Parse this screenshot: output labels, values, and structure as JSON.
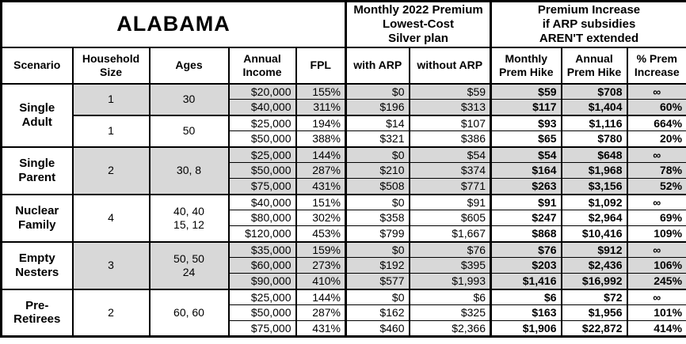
{
  "title": "ALABAMA",
  "header": {
    "premium_group": "Monthly 2022 Premium\nLowest-Cost\nSilver plan",
    "increase_group": "Premium Increase\nif ARP subsidies\nAREN'T extended",
    "columns": [
      "Scenario",
      "Household\nSize",
      "Ages",
      "Annual\nIncome",
      "FPL",
      "with ARP",
      "without ARP",
      "Monthly\nPrem Hike",
      "Annual\nPrem Hike",
      "% Prem\nIncrease"
    ]
  },
  "colors": {
    "shaded_row": "#d8d8d8",
    "border": "#000000",
    "background": "#ffffff"
  },
  "groups": [
    {
      "scenario": "Single\nAdult",
      "subgroups": [
        {
          "household_size": "1",
          "ages": "30",
          "shaded": true,
          "rows": [
            [
              "$20,000",
              "155%",
              "$0",
              "$59",
              "$59",
              "$708",
              "∞"
            ],
            [
              "$40,000",
              "311%",
              "$196",
              "$313",
              "$117",
              "$1,404",
              "60%"
            ]
          ]
        },
        {
          "household_size": "1",
          "ages": "50",
          "shaded": false,
          "rows": [
            [
              "$25,000",
              "194%",
              "$14",
              "$107",
              "$93",
              "$1,116",
              "664%"
            ],
            [
              "$50,000",
              "388%",
              "$321",
              "$386",
              "$65",
              "$780",
              "20%"
            ]
          ]
        }
      ]
    },
    {
      "scenario": "Single\nParent",
      "subgroups": [
        {
          "household_size": "2",
          "ages": "30, 8",
          "shaded": true,
          "rows": [
            [
              "$25,000",
              "144%",
              "$0",
              "$54",
              "$54",
              "$648",
              "∞"
            ],
            [
              "$50,000",
              "287%",
              "$210",
              "$374",
              "$164",
              "$1,968",
              "78%"
            ],
            [
              "$75,000",
              "431%",
              "$508",
              "$771",
              "$263",
              "$3,156",
              "52%"
            ]
          ]
        }
      ]
    },
    {
      "scenario": "Nuclear\nFamily",
      "subgroups": [
        {
          "household_size": "4",
          "ages": "40, 40\n15, 12",
          "shaded": false,
          "rows": [
            [
              "$40,000",
              "151%",
              "$0",
              "$91",
              "$91",
              "$1,092",
              "∞"
            ],
            [
              "$80,000",
              "302%",
              "$358",
              "$605",
              "$247",
              "$2,964",
              "69%"
            ],
            [
              "$120,000",
              "453%",
              "$799",
              "$1,667",
              "$868",
              "$10,416",
              "109%"
            ]
          ]
        }
      ]
    },
    {
      "scenario": "Empty\nNesters",
      "subgroups": [
        {
          "household_size": "3",
          "ages": "50, 50\n24",
          "shaded": true,
          "rows": [
            [
              "$35,000",
              "159%",
              "$0",
              "$76",
              "$76",
              "$912",
              "∞"
            ],
            [
              "$60,000",
              "273%",
              "$192",
              "$395",
              "$203",
              "$2,436",
              "106%"
            ],
            [
              "$90,000",
              "410%",
              "$577",
              "$1,993",
              "$1,416",
              "$16,992",
              "245%"
            ]
          ]
        }
      ]
    },
    {
      "scenario": "Pre-\nRetirees",
      "subgroups": [
        {
          "household_size": "2",
          "ages": "60, 60",
          "shaded": false,
          "rows": [
            [
              "$25,000",
              "144%",
              "$0",
              "$6",
              "$6",
              "$72",
              "∞"
            ],
            [
              "$50,000",
              "287%",
              "$162",
              "$325",
              "$163",
              "$1,956",
              "101%"
            ],
            [
              "$75,000",
              "431%",
              "$460",
              "$2,366",
              "$1,906",
              "$22,872",
              "414%"
            ]
          ]
        }
      ]
    }
  ],
  "chart_data": {
    "type": "table",
    "title": "ALABAMA",
    "column_groups": [
      "Monthly 2022 Premium Lowest-Cost Silver plan",
      "Premium Increase if ARP subsidies AREN'T extended"
    ],
    "columns": [
      "Scenario",
      "Household Size",
      "Ages",
      "Annual Income",
      "FPL",
      "with ARP",
      "without ARP",
      "Monthly Prem Hike",
      "Annual Prem Hike",
      "% Prem Increase"
    ],
    "rows": [
      [
        "Single Adult",
        "1",
        "30",
        "$20,000",
        "155%",
        "$0",
        "$59",
        "$59",
        "$708",
        "∞"
      ],
      [
        "Single Adult",
        "1",
        "30",
        "$40,000",
        "311%",
        "$196",
        "$313",
        "$117",
        "$1,404",
        "60%"
      ],
      [
        "Single Adult",
        "1",
        "50",
        "$25,000",
        "194%",
        "$14",
        "$107",
        "$93",
        "$1,116",
        "664%"
      ],
      [
        "Single Adult",
        "1",
        "50",
        "$50,000",
        "388%",
        "$321",
        "$386",
        "$65",
        "$780",
        "20%"
      ],
      [
        "Single Parent",
        "2",
        "30, 8",
        "$25,000",
        "144%",
        "$0",
        "$54",
        "$54",
        "$648",
        "∞"
      ],
      [
        "Single Parent",
        "2",
        "30, 8",
        "$50,000",
        "287%",
        "$210",
        "$374",
        "$164",
        "$1,968",
        "78%"
      ],
      [
        "Single Parent",
        "2",
        "30, 8",
        "$75,000",
        "431%",
        "$508",
        "$771",
        "$263",
        "$3,156",
        "52%"
      ],
      [
        "Nuclear Family",
        "4",
        "40, 40, 15, 12",
        "$40,000",
        "151%",
        "$0",
        "$91",
        "$91",
        "$1,092",
        "∞"
      ],
      [
        "Nuclear Family",
        "4",
        "40, 40, 15, 12",
        "$80,000",
        "302%",
        "$358",
        "$605",
        "$247",
        "$2,964",
        "69%"
      ],
      [
        "Nuclear Family",
        "4",
        "40, 40, 15, 12",
        "$120,000",
        "453%",
        "$799",
        "$1,667",
        "$868",
        "$10,416",
        "109%"
      ],
      [
        "Empty Nesters",
        "3",
        "50, 50, 24",
        "$35,000",
        "159%",
        "$0",
        "$76",
        "$76",
        "$912",
        "∞"
      ],
      [
        "Empty Nesters",
        "3",
        "50, 50, 24",
        "$60,000",
        "273%",
        "$192",
        "$395",
        "$203",
        "$2,436",
        "106%"
      ],
      [
        "Empty Nesters",
        "3",
        "50, 50, 24",
        "$90,000",
        "410%",
        "$577",
        "$1,993",
        "$1,416",
        "$16,992",
        "245%"
      ],
      [
        "Pre-Retirees",
        "2",
        "60, 60",
        "$25,000",
        "144%",
        "$0",
        "$6",
        "$6",
        "$72",
        "∞"
      ],
      [
        "Pre-Retirees",
        "2",
        "60, 60",
        "$50,000",
        "287%",
        "$162",
        "$325",
        "$163",
        "$1,956",
        "101%"
      ],
      [
        "Pre-Retirees",
        "2",
        "60, 60",
        "$75,000",
        "431%",
        "$460",
        "$2,366",
        "$1,906",
        "$22,872",
        "414%"
      ]
    ]
  }
}
